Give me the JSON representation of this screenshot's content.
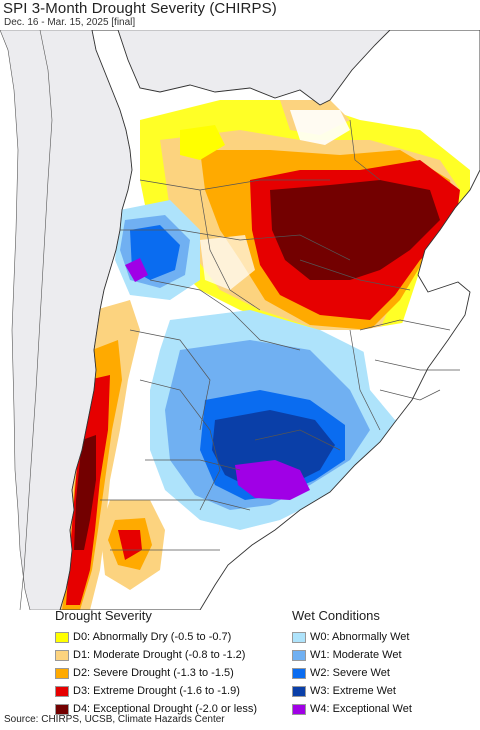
{
  "header": {
    "title": "SPI 3-Month Drought Severity (CHIRPS)",
    "subtitle": "Dec. 16 - Mar. 15, 2025 [final]"
  },
  "map": {
    "region": "southern South America",
    "colors": {
      "ocean": "#ffffff",
      "outside_land": "#ececef",
      "border": "#444444"
    }
  },
  "legend": {
    "drought": {
      "title": "Drought Severity",
      "items": [
        {
          "code": "D0",
          "label": "D0: Abnormally Dry (-0.5 to -0.7)",
          "color": "#ffff00"
        },
        {
          "code": "D1",
          "label": "D1: Moderate Drought (-0.8 to -1.2)",
          "color": "#fcd37f"
        },
        {
          "code": "D2",
          "label": "D2: Severe Drought (-1.3 to -1.5)",
          "color": "#ffaa00"
        },
        {
          "code": "D3",
          "label": "D3: Extreme Drought (-1.6 to -1.9)",
          "color": "#e60000"
        },
        {
          "code": "D4",
          "label": "D4: Exceptional Drought (-2.0 or less)",
          "color": "#730000"
        }
      ]
    },
    "wet": {
      "title": "Wet Conditions",
      "items": [
        {
          "code": "W0",
          "label": "W0: Abnormally Wet",
          "color": "#aee3fb"
        },
        {
          "code": "W1",
          "label": "W1: Moderate Wet",
          "color": "#70b0f2"
        },
        {
          "code": "W2",
          "label": "W2: Severe Wet",
          "color": "#0a6cf0"
        },
        {
          "code": "W3",
          "label": "W3: Extreme Wet",
          "color": "#0a3fa8"
        },
        {
          "code": "W4",
          "label": "W4: Exceptional Wet",
          "color": "#a000e6"
        }
      ]
    }
  },
  "footer": {
    "source": "Source: CHIRPS, UCSB, Climate Hazards Center"
  }
}
